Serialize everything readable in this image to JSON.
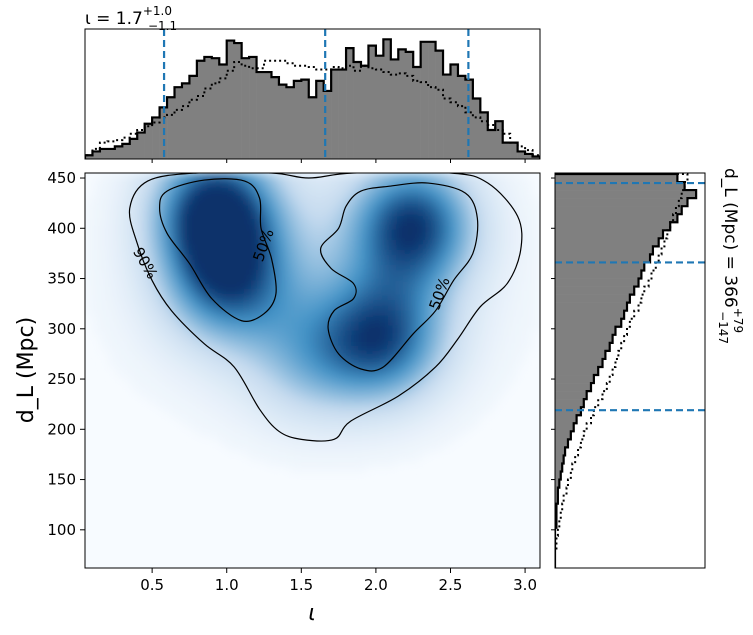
{
  "colors": {
    "hist_fill": "#808080",
    "hist_edge": "#000000",
    "quantile_line": "#1f77b4",
    "density_low": "#f7fbff",
    "density_high": "#08306b",
    "contour": "#000000"
  },
  "chart_data": [
    {
      "id": "top-marginal",
      "type": "histogram",
      "variable_symbol": "ι",
      "title": {
        "prefix": "ι = 1.7",
        "sup": "+1.0",
        "sub": "−1.1"
      },
      "median": 1.7,
      "plus": 1.0,
      "minus": 1.1,
      "xlim": [
        0.05,
        3.1
      ],
      "quantile_lines": [
        0.58,
        1.66,
        2.62
      ],
      "bin_edges": [
        0.05,
        0.1,
        0.15,
        0.2,
        0.25,
        0.3,
        0.35,
        0.4,
        0.45,
        0.5,
        0.55,
        0.6,
        0.65,
        0.7,
        0.75,
        0.8,
        0.85,
        0.9,
        0.95,
        1.0,
        1.05,
        1.1,
        1.15,
        1.2,
        1.25,
        1.3,
        1.35,
        1.4,
        1.45,
        1.5,
        1.55,
        1.6,
        1.65,
        1.7,
        1.75,
        1.8,
        1.85,
        1.9,
        1.95,
        2.0,
        2.05,
        2.1,
        2.15,
        2.2,
        2.25,
        2.3,
        2.35,
        2.4,
        2.45,
        2.5,
        2.55,
        2.6,
        2.65,
        2.7,
        2.75,
        2.8,
        2.85,
        2.9,
        2.95,
        3.0,
        3.05,
        3.1
      ],
      "posterior_density": [
        0.03,
        0.06,
        0.08,
        0.08,
        0.1,
        0.12,
        0.16,
        0.21,
        0.28,
        0.33,
        0.41,
        0.49,
        0.57,
        0.6,
        0.66,
        0.78,
        0.81,
        0.8,
        0.75,
        0.94,
        0.92,
        0.8,
        0.81,
        0.69,
        0.69,
        0.65,
        0.59,
        0.57,
        0.62,
        0.63,
        0.49,
        0.62,
        0.54,
        0.71,
        0.71,
        0.88,
        0.77,
        0.74,
        0.9,
        0.82,
        0.95,
        0.79,
        0.87,
        0.85,
        0.73,
        0.93,
        0.93,
        0.86,
        0.67,
        0.75,
        0.66,
        0.63,
        0.48,
        0.37,
        0.23,
        0.3,
        0.13,
        0.13,
        0.06,
        0.04,
        0.02
      ],
      "prior_density": [
        0.03,
        0.08,
        0.13,
        0.14,
        0.15,
        0.17,
        0.2,
        0.23,
        0.26,
        0.29,
        0.33,
        0.35,
        0.39,
        0.42,
        0.47,
        0.5,
        0.56,
        0.6,
        0.64,
        0.7,
        0.77,
        0.74,
        0.72,
        0.72,
        0.78,
        0.78,
        0.78,
        0.76,
        0.74,
        0.74,
        0.73,
        0.71,
        0.71,
        0.73,
        0.72,
        0.74,
        0.7,
        0.74,
        0.72,
        0.71,
        0.69,
        0.67,
        0.68,
        0.66,
        0.62,
        0.61,
        0.57,
        0.55,
        0.48,
        0.45,
        0.42,
        0.37,
        0.33,
        0.3,
        0.27,
        0.23,
        0.2,
        0.13,
        0.1,
        0.07,
        0.03
      ]
    },
    {
      "id": "joint-density",
      "type": "heatmap",
      "xlabel": "ι",
      "ylabel": "d_L (Mpc)",
      "xlim": [
        0.05,
        3.1
      ],
      "ylim": [
        62,
        455
      ],
      "xticks": [
        0.5,
        1.0,
        1.5,
        2.0,
        2.5,
        3.0
      ],
      "xtick_labels": [
        "0.5",
        "1.0",
        "1.5",
        "2.0",
        "2.5",
        "3.0"
      ],
      "yticks": [
        100,
        150,
        200,
        250,
        300,
        350,
        400,
        450
      ],
      "ytick_labels": [
        "100",
        "150",
        "200",
        "250",
        "300",
        "350",
        "400",
        "450"
      ],
      "density_peaks": [
        {
          "x": 0.92,
          "y": 422,
          "weight": 1.0
        },
        {
          "x": 1.0,
          "y": 350,
          "weight": 0.75
        },
        {
          "x": 2.25,
          "y": 405,
          "weight": 0.95
        },
        {
          "x": 2.05,
          "y": 290,
          "weight": 0.8
        },
        {
          "x": 1.55,
          "y": 270,
          "weight": 0.35
        }
      ],
      "contours": [
        {
          "label": "90%",
          "label_at": {
            "x": 0.45,
            "y": 365
          },
          "points": [
            [
              0.35,
              420
            ],
            [
              0.47,
              447
            ],
            [
              0.8,
              455
            ],
            [
              1.3,
              455
            ],
            [
              1.55,
              450
            ],
            [
              1.85,
              455
            ],
            [
              2.5,
              455
            ],
            [
              2.75,
              445
            ],
            [
              2.95,
              412
            ],
            [
              2.97,
              378
            ],
            [
              2.88,
              345
            ],
            [
              2.7,
              322
            ],
            [
              2.55,
              290
            ],
            [
              2.4,
              262
            ],
            [
              2.15,
              233
            ],
            [
              1.83,
              208
            ],
            [
              1.72,
              190
            ],
            [
              1.5,
              190
            ],
            [
              1.35,
              198
            ],
            [
              1.22,
              220
            ],
            [
              1.05,
              262
            ],
            [
              0.85,
              285
            ],
            [
              0.63,
              318
            ],
            [
              0.5,
              348
            ],
            [
              0.4,
              385
            ],
            [
              0.35,
              420
            ]
          ]
        },
        {
          "label": "50%",
          "label_at": {
            "x": 1.25,
            "y": 383
          },
          "points": [
            [
              0.55,
              420
            ],
            [
              0.6,
              437
            ],
            [
              0.85,
              448
            ],
            [
              1.12,
              447
            ],
            [
              1.22,
              430
            ],
            [
              1.23,
              400
            ],
            [
              1.3,
              370
            ],
            [
              1.33,
              335
            ],
            [
              1.25,
              315
            ],
            [
              1.1,
              308
            ],
            [
              0.9,
              330
            ],
            [
              0.75,
              365
            ],
            [
              0.6,
              395
            ],
            [
              0.55,
              420
            ]
          ]
        },
        {
          "label": "50%",
          "label_at": {
            "x": 2.43,
            "y": 335
          },
          "points": [
            [
              1.75,
              400
            ],
            [
              1.8,
              422
            ],
            [
              1.9,
              437
            ],
            [
              2.1,
              442
            ],
            [
              2.35,
              445
            ],
            [
              2.6,
              435
            ],
            [
              2.68,
              410
            ],
            [
              2.65,
              375
            ],
            [
              2.52,
              348
            ],
            [
              2.4,
              318
            ],
            [
              2.25,
              295
            ],
            [
              2.05,
              262
            ],
            [
              1.9,
              260
            ],
            [
              1.75,
              275
            ],
            [
              1.68,
              300
            ],
            [
              1.72,
              318
            ],
            [
              1.85,
              330
            ],
            [
              1.85,
              345
            ],
            [
              1.7,
              360
            ],
            [
              1.63,
              380
            ],
            [
              1.75,
              400
            ]
          ]
        }
      ]
    },
    {
      "id": "right-marginal",
      "type": "histogram",
      "orientation": "horizontal",
      "variable_symbol": "d_L (Mpc)",
      "title": {
        "prefix": "d_L (Mpc) = 366",
        "sup": "+79",
        "sub": "−147"
      },
      "median": 366,
      "plus": 79,
      "minus": 147,
      "ylim": [
        62,
        455
      ],
      "quantile_lines": [
        219,
        366,
        445
      ],
      "bin_edges": [
        62,
        70,
        78,
        86,
        94,
        102,
        110,
        118,
        126,
        134,
        142,
        150,
        158,
        166,
        174,
        182,
        190,
        198,
        206,
        214,
        222,
        230,
        238,
        246,
        254,
        262,
        270,
        278,
        286,
        294,
        302,
        310,
        318,
        326,
        334,
        342,
        350,
        358,
        366,
        374,
        382,
        390,
        398,
        406,
        414,
        422,
        430,
        438,
        446,
        454
      ],
      "posterior_density": [
        0.0,
        0.0,
        0.0,
        0.0,
        0.0,
        0.01,
        0.01,
        0.01,
        0.02,
        0.02,
        0.03,
        0.04,
        0.05,
        0.06,
        0.07,
        0.09,
        0.11,
        0.13,
        0.15,
        0.18,
        0.2,
        0.22,
        0.25,
        0.27,
        0.3,
        0.33,
        0.35,
        0.38,
        0.4,
        0.42,
        0.46,
        0.48,
        0.5,
        0.52,
        0.55,
        0.58,
        0.6,
        0.62,
        0.66,
        0.68,
        0.72,
        0.75,
        0.8,
        0.85,
        0.88,
        0.92,
        0.98,
        0.9,
        0.85
      ],
      "prior_density": [
        0.0,
        0.0,
        0.01,
        0.01,
        0.02,
        0.03,
        0.04,
        0.05,
        0.06,
        0.08,
        0.09,
        0.11,
        0.12,
        0.14,
        0.16,
        0.18,
        0.2,
        0.22,
        0.25,
        0.27,
        0.3,
        0.33,
        0.36,
        0.38,
        0.4,
        0.42,
        0.44,
        0.46,
        0.48,
        0.5,
        0.52,
        0.55,
        0.58,
        0.6,
        0.62,
        0.65,
        0.67,
        0.7,
        0.72,
        0.74,
        0.76,
        0.78,
        0.8,
        0.82,
        0.84,
        0.86,
        0.88,
        0.9,
        0.92
      ]
    }
  ]
}
